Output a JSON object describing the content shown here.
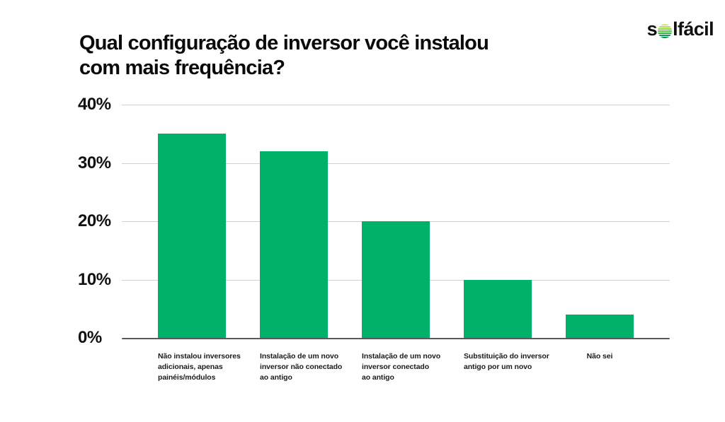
{
  "page": {
    "background": "#ffffff"
  },
  "header": {
    "title_line1": "Qual configuração de inversor você instalou",
    "title_line2": "com mais frequência?",
    "logo": {
      "name": "solfácil",
      "text_before_sun": "s",
      "text_after_sun": "lfácil",
      "sun_icon": "striped-sun-icon",
      "sun_top_color": "#dcec4f",
      "sun_bottom_color": "#008f49"
    }
  },
  "chart_data": {
    "type": "bar",
    "title": "Qual configuração de inversor você instalou com mais frequência?",
    "categories": [
      "Não instalou inversores adicionais, apenas painéis/módulos",
      "Instalação de um novo inversor não conectado ao antigo",
      "Instalação de um novo inversor conectado ao antigo",
      "Substituição do inversor antigo por um novo",
      "Não sei"
    ],
    "category_label_lines": [
      [
        "Não instalou inversores",
        "adicionais, apenas",
        "painéis/módulos"
      ],
      [
        "Instalação de um novo",
        "inversor não conectado",
        "ao antigo"
      ],
      [
        "Instalação de um novo",
        "inversor conectado",
        "ao antigo"
      ],
      [
        "Substituição do inversor",
        "antigo por um novo"
      ],
      [
        "Não sei"
      ]
    ],
    "values": [
      35,
      32,
      20,
      10,
      4
    ],
    "unit": "%",
    "xlabel": "",
    "ylabel": "",
    "ylim": [
      0,
      40
    ],
    "yticks_top_to_bottom": [
      "40%",
      "30%",
      "20%",
      "10%",
      "0%"
    ],
    "grid": true,
    "legend": false,
    "bar_color": "#00b269",
    "axis_color": "#58595b",
    "gridline_color": "#cfcfcf",
    "text_color": "#111111"
  }
}
